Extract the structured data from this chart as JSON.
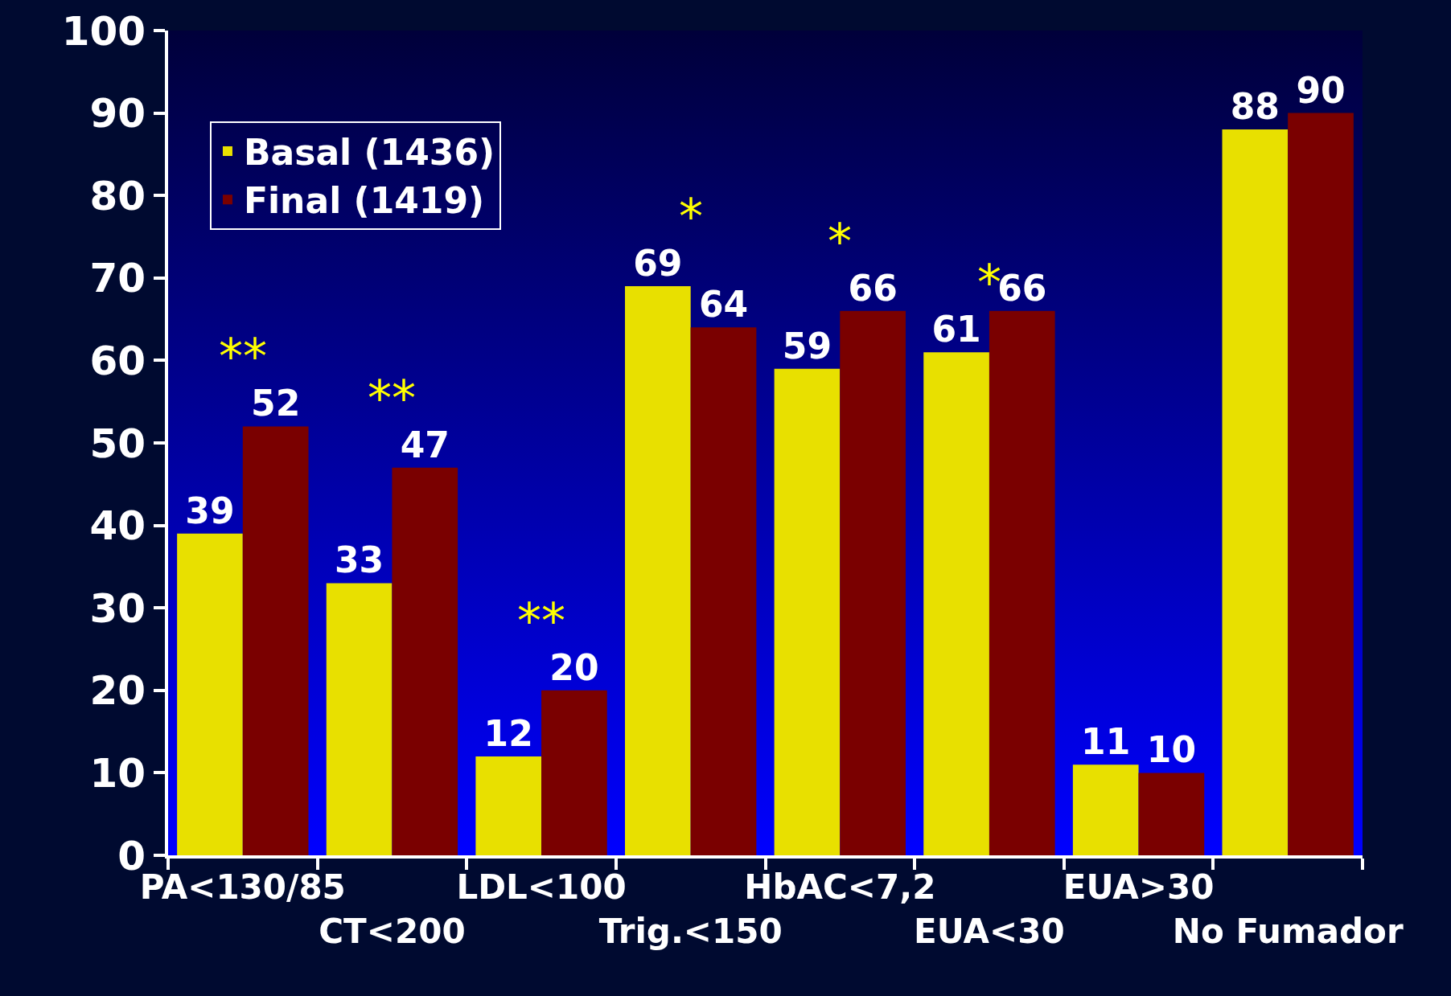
{
  "chart_data": {
    "type": "bar",
    "categories": [
      "PA<130/85",
      "CT<200",
      "LDL<100",
      "Trig.<150",
      "HbAC<7,2",
      "EUA<30",
      "EUA>30",
      "No Fumador"
    ],
    "series": [
      {
        "name": "Basal (1436)",
        "color": "#e8e000",
        "values": [
          39,
          33,
          12,
          69,
          59,
          61,
          11,
          88
        ]
      },
      {
        "name": "Final (1419)",
        "color": "#7a0000",
        "values": [
          52,
          47,
          20,
          64,
          66,
          66,
          10,
          90
        ]
      }
    ],
    "ylim": [
      0,
      100
    ],
    "yticks": [
      0,
      10,
      20,
      30,
      40,
      50,
      60,
      70,
      80,
      90,
      100
    ],
    "grid": false,
    "legend": "top left",
    "data_labels": true,
    "annotations": [
      {
        "text": "**",
        "x": "PA<130/85",
        "y": 52
      },
      {
        "text": "**",
        "x": "CT<200",
        "y": 47
      },
      {
        "text": "**",
        "x": "LDL<100",
        "y": 20
      },
      {
        "text": "*",
        "x": "Trig.<150",
        "y": 69
      },
      {
        "text": "*",
        "x": "HbAC<7,2",
        "y": 66
      },
      {
        "text": "*",
        "x": "EUA<30",
        "y": 61
      }
    ]
  }
}
